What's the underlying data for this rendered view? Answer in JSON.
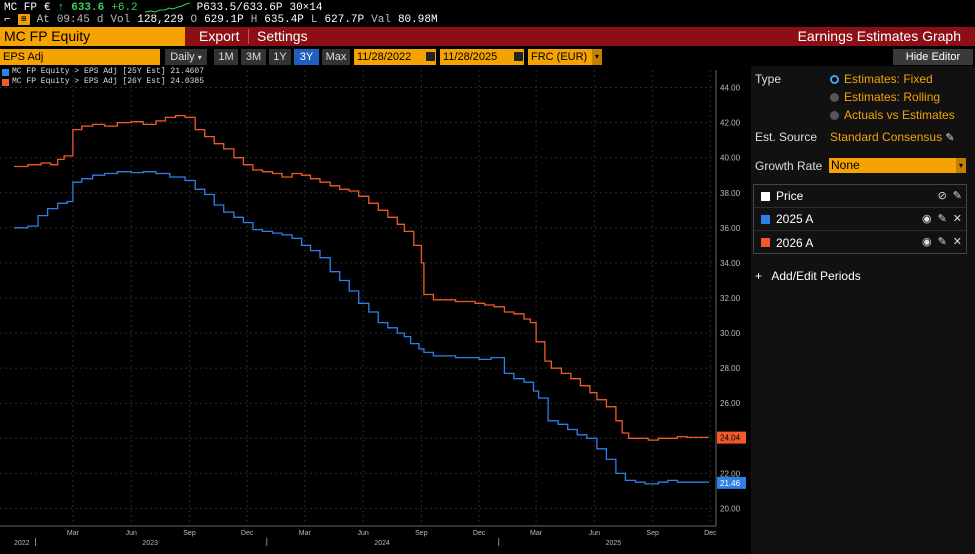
{
  "topbar": {
    "ticker": "MC FP",
    "currency": "€",
    "change_arrow": "↑",
    "last": "633.6",
    "change": "+6.2",
    "bid": "P633.5",
    "ask": "/633.6P",
    "size": "30×14",
    "time_label": "At",
    "time": "09:45",
    "time_suffix": "d",
    "vol_label": "Vol",
    "vol": "128,229",
    "open_label": "O",
    "open": "629.1P",
    "high_label": "H",
    "high": "635.4P",
    "low_label": "L",
    "low": "627.7P",
    "val_label": "Val",
    "val": "80.98M"
  },
  "titlebar": {
    "ticker": "MC FP Equity",
    "export": "Export",
    "settings": "Settings",
    "title": "Earnings Estimates Graph"
  },
  "controls": {
    "metric": "EPS Adj",
    "period": "Daily",
    "ranges": [
      "1M",
      "3M",
      "1Y",
      "3Y",
      "Max"
    ],
    "active_range": "3Y",
    "start_date": "11/28/2022",
    "end_date": "11/28/2025",
    "currency": "FRC (EUR)",
    "hide_editor": "Hide Editor"
  },
  "legend": [
    {
      "label": "MC FP Equity > EPS Adj [25Y Est]  21.4607",
      "color": "#2f7fe8"
    },
    {
      "label": "MC FP Equity > EPS Adj [26Y Est]  24.0385",
      "color": "#f05a28"
    }
  ],
  "panel": {
    "type_label": "Type",
    "type_options": [
      "Estimates: Fixed",
      "Estimates: Rolling",
      "Actuals vs Estimates"
    ],
    "type_selected": 0,
    "source_label": "Est. Source",
    "source_value": "Standard Consensus",
    "growth_label": "Growth Rate",
    "growth_value": "None",
    "series": [
      {
        "name": "Price",
        "color": "#ffffff"
      },
      {
        "name": "2025 A",
        "color": "#2f7fe8"
      },
      {
        "name": "2026 A",
        "color": "#f05a28"
      }
    ],
    "add_periods": "Add/Edit Periods"
  },
  "chart_data": {
    "type": "line",
    "x_range": [
      "2022-11-28",
      "2025-11-28"
    ],
    "ylim": [
      19.0,
      45.0
    ],
    "y_ticks": [
      20,
      22,
      24,
      26,
      28,
      30,
      32,
      34,
      36,
      38,
      40,
      42,
      44
    ],
    "y_tick_labels": [
      "20.00",
      "22.00",
      "24.00",
      "26.00",
      "28.00",
      "30.00",
      "32.00",
      "34.00",
      "36.00",
      "38.00",
      "40.00",
      "42.00",
      "44.00"
    ],
    "x_months": [
      {
        "date": "2023-03-01",
        "label": "Mar"
      },
      {
        "date": "2023-06-01",
        "label": "Jun"
      },
      {
        "date": "2023-09-01",
        "label": "Sep"
      },
      {
        "date": "2023-12-01",
        "label": "Dec"
      },
      {
        "date": "2024-03-01",
        "label": "Mar"
      },
      {
        "date": "2024-06-01",
        "label": "Jun"
      },
      {
        "date": "2024-09-01",
        "label": "Sep"
      },
      {
        "date": "2024-12-01",
        "label": "Dec"
      },
      {
        "date": "2025-03-01",
        "label": "Mar"
      },
      {
        "date": "2025-06-01",
        "label": "Jun"
      },
      {
        "date": "2025-09-01",
        "label": "Sep"
      },
      {
        "date": "2025-12-01",
        "label": "Dec"
      }
    ],
    "x_years": [
      {
        "date": "2022-11-28",
        "label": "2022"
      },
      {
        "date": "2023-07-01",
        "label": "2023"
      },
      {
        "date": "2024-07-01",
        "label": "2024"
      },
      {
        "date": "2025-07-01",
        "label": "2025"
      }
    ],
    "grid": true,
    "series": [
      {
        "name": "2025 A",
        "color": "#2f7fe8",
        "last_label": "21.46",
        "points": [
          [
            "2022-11-28",
            36.0
          ],
          [
            "2022-12-20",
            36.1
          ],
          [
            "2023-01-05",
            36.7
          ],
          [
            "2023-01-20",
            37.1
          ],
          [
            "2023-02-05",
            37.4
          ],
          [
            "2023-02-20",
            37.5
          ],
          [
            "2023-03-01",
            38.6
          ],
          [
            "2023-03-15",
            38.8
          ],
          [
            "2023-04-01",
            39.0
          ],
          [
            "2023-04-20",
            39.1
          ],
          [
            "2023-05-10",
            39.2
          ],
          [
            "2023-06-01",
            39.15
          ],
          [
            "2023-06-20",
            39.2
          ],
          [
            "2023-07-10",
            39.1
          ],
          [
            "2023-08-01",
            38.9
          ],
          [
            "2023-08-25",
            38.7
          ],
          [
            "2023-09-10",
            38.2
          ],
          [
            "2023-09-25",
            37.9
          ],
          [
            "2023-10-10",
            37.3
          ],
          [
            "2023-10-25",
            36.9
          ],
          [
            "2023-11-10",
            36.6
          ],
          [
            "2023-11-25",
            36.3
          ],
          [
            "2023-12-10",
            35.9
          ],
          [
            "2023-12-25",
            35.8
          ],
          [
            "2024-01-10",
            35.7
          ],
          [
            "2024-01-25",
            35.6
          ],
          [
            "2024-02-10",
            35.4
          ],
          [
            "2024-02-25",
            35.0
          ],
          [
            "2024-03-10",
            34.7
          ],
          [
            "2024-03-25",
            34.3
          ],
          [
            "2024-04-10",
            33.5
          ],
          [
            "2024-04-25",
            33.0
          ],
          [
            "2024-05-10",
            32.4
          ],
          [
            "2024-05-25",
            31.7
          ],
          [
            "2024-06-10",
            31.2
          ],
          [
            "2024-06-25",
            30.6
          ],
          [
            "2024-07-10",
            30.3
          ],
          [
            "2024-07-25",
            30.0
          ],
          [
            "2024-08-05",
            29.8
          ],
          [
            "2024-08-15",
            29.4
          ],
          [
            "2024-08-28",
            29.1
          ],
          [
            "2024-09-05",
            28.9
          ],
          [
            "2024-09-20",
            28.7
          ],
          [
            "2024-10-10",
            28.7
          ],
          [
            "2024-10-25",
            28.6
          ],
          [
            "2024-11-10",
            28.6
          ],
          [
            "2024-12-01",
            28.5
          ],
          [
            "2024-12-20",
            28.6
          ],
          [
            "2025-01-10",
            27.7
          ],
          [
            "2025-01-25",
            27.4
          ],
          [
            "2025-02-10",
            27.2
          ],
          [
            "2025-02-25",
            26.7
          ],
          [
            "2025-03-05",
            26.3
          ],
          [
            "2025-03-20",
            25.0
          ],
          [
            "2025-04-05",
            24.8
          ],
          [
            "2025-04-20",
            24.5
          ],
          [
            "2025-05-05",
            24.2
          ],
          [
            "2025-05-20",
            24.0
          ],
          [
            "2025-06-05",
            23.4
          ],
          [
            "2025-06-20",
            22.8
          ],
          [
            "2025-07-05",
            22.0
          ],
          [
            "2025-07-20",
            21.6
          ],
          [
            "2025-08-05",
            21.5
          ],
          [
            "2025-08-20",
            21.4
          ],
          [
            "2025-09-10",
            21.5
          ],
          [
            "2025-09-25",
            21.6
          ],
          [
            "2025-10-10",
            21.5
          ],
          [
            "2025-10-25",
            21.5
          ],
          [
            "2025-11-10",
            21.5
          ],
          [
            "2025-11-28",
            21.46
          ]
        ]
      },
      {
        "name": "2026 A",
        "color": "#f05a28",
        "last_label": "24.04",
        "points": [
          [
            "2022-11-28",
            39.5
          ],
          [
            "2022-12-20",
            39.6
          ],
          [
            "2023-01-10",
            39.7
          ],
          [
            "2023-01-25",
            39.6
          ],
          [
            "2023-02-05",
            39.9
          ],
          [
            "2023-02-15",
            40.1
          ],
          [
            "2023-03-01",
            41.6
          ],
          [
            "2023-03-15",
            41.8
          ],
          [
            "2023-04-01",
            41.9
          ],
          [
            "2023-04-20",
            41.8
          ],
          [
            "2023-05-10",
            42.0
          ],
          [
            "2023-06-01",
            42.05
          ],
          [
            "2023-06-20",
            41.9
          ],
          [
            "2023-07-10",
            42.1
          ],
          [
            "2023-07-25",
            42.3
          ],
          [
            "2023-08-10",
            42.4
          ],
          [
            "2023-08-25",
            42.3
          ],
          [
            "2023-09-10",
            41.6
          ],
          [
            "2023-09-25",
            41.2
          ],
          [
            "2023-10-10",
            40.8
          ],
          [
            "2023-10-25",
            40.5
          ],
          [
            "2023-11-10",
            40.0
          ],
          [
            "2023-11-25",
            39.6
          ],
          [
            "2023-12-10",
            39.3
          ],
          [
            "2023-12-25",
            39.2
          ],
          [
            "2024-01-10",
            39.1
          ],
          [
            "2024-01-25",
            38.9
          ],
          [
            "2024-02-10",
            39.1
          ],
          [
            "2024-02-25",
            39.0
          ],
          [
            "2024-03-10",
            38.8
          ],
          [
            "2024-03-25",
            38.6
          ],
          [
            "2024-04-10",
            38.4
          ],
          [
            "2024-04-25",
            38.2
          ],
          [
            "2024-05-10",
            38.1
          ],
          [
            "2024-05-25",
            37.8
          ],
          [
            "2024-06-10",
            37.4
          ],
          [
            "2024-06-25",
            37.0
          ],
          [
            "2024-07-10",
            36.6
          ],
          [
            "2024-07-25",
            36.2
          ],
          [
            "2024-08-05",
            35.8
          ],
          [
            "2024-08-20",
            35.0
          ],
          [
            "2024-09-01",
            34.0
          ],
          [
            "2024-09-05",
            32.2
          ],
          [
            "2024-09-20",
            31.9
          ],
          [
            "2024-10-10",
            31.9
          ],
          [
            "2024-10-25",
            31.8
          ],
          [
            "2024-11-10",
            31.8
          ],
          [
            "2024-11-25",
            31.7
          ],
          [
            "2024-12-10",
            31.6
          ],
          [
            "2024-12-25",
            31.5
          ],
          [
            "2025-01-10",
            31.2
          ],
          [
            "2025-01-25",
            31.1
          ],
          [
            "2025-02-10",
            30.8
          ],
          [
            "2025-02-20",
            30.6
          ],
          [
            "2025-03-01",
            29.5
          ],
          [
            "2025-03-15",
            28.4
          ],
          [
            "2025-03-25",
            28.0
          ],
          [
            "2025-04-10",
            27.7
          ],
          [
            "2025-04-25",
            27.4
          ],
          [
            "2025-05-10",
            27.0
          ],
          [
            "2025-05-25",
            26.6
          ],
          [
            "2025-06-05",
            26.2
          ],
          [
            "2025-06-20",
            25.8
          ],
          [
            "2025-07-05",
            25.0
          ],
          [
            "2025-07-15",
            24.3
          ],
          [
            "2025-07-25",
            24.0
          ],
          [
            "2025-08-10",
            24.0
          ],
          [
            "2025-08-25",
            23.9
          ],
          [
            "2025-09-10",
            24.0
          ],
          [
            "2025-09-25",
            24.0
          ],
          [
            "2025-10-10",
            24.1
          ],
          [
            "2025-10-25",
            24.05
          ],
          [
            "2025-11-10",
            24.05
          ],
          [
            "2025-11-28",
            24.04
          ]
        ]
      }
    ]
  }
}
